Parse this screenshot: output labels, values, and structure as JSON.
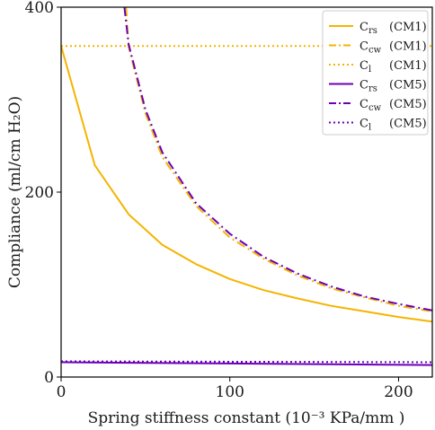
{
  "chart_data": {
    "type": "line",
    "xlabel": "Spring stiffness constant (10⁻³ KPa/mm )",
    "ylabel": "Compliance (ml/cm H₂O)",
    "xlim": [
      0,
      220
    ],
    "ylim": [
      0,
      400
    ],
    "xticks": [
      "0",
      "100",
      "200"
    ],
    "yticks": [
      "0",
      "200",
      "400"
    ],
    "legend_position": "top-right",
    "colors": {
      "cm1": "#F5B400",
      "cm5": "#6A00B8",
      "axis": "#000000"
    },
    "series": [
      {
        "name": "C_rs (CM1)",
        "label_main": "C",
        "label_sub": "rs",
        "label_tag": "(CM1)",
        "style": "solid",
        "color": "#F5B400",
        "x": [
          0,
          20,
          40,
          60,
          80,
          100,
          120,
          140,
          160,
          180,
          200,
          220
        ],
        "values": [
          358,
          229,
          176,
          143,
          122,
          106,
          94,
          85,
          77,
          71,
          65,
          60
        ]
      },
      {
        "name": "C_cw (CM1)",
        "label_main": "C",
        "label_sub": "cw",
        "label_tag": "(CM1)",
        "style": "dashdot",
        "color": "#F5B400",
        "x": [
          38.5,
          40,
          50,
          60,
          80,
          100,
          120,
          140,
          160,
          180,
          200,
          220
        ],
        "values": [
          400,
          357,
          285,
          238,
          185,
          151,
          128,
          110,
          96,
          86,
          77,
          71
        ]
      },
      {
        "name": "C_l (CM1)",
        "label_main": "C",
        "label_sub": "l",
        "label_tag": "(CM1)",
        "style": "dotted",
        "color": "#F5B400",
        "x": [
          0,
          220
        ],
        "values": [
          358,
          358
        ]
      },
      {
        "name": "C_rs (CM5)",
        "label_main": "C",
        "label_sub": "rs",
        "label_tag": "(CM5)",
        "style": "solid",
        "color": "#6A00B8",
        "x": [
          0,
          220
        ],
        "values": [
          16,
          13
        ]
      },
      {
        "name": "C_cw (CM5)",
        "label_main": "C",
        "label_sub": "cw",
        "label_tag": "(CM5)",
        "style": "dashdot",
        "color": "#6A00B8",
        "x": [
          37.5,
          40,
          50,
          60,
          80,
          100,
          120,
          140,
          160,
          180,
          200,
          220
        ],
        "values": [
          400,
          360,
          289,
          243,
          188,
          155,
          130,
          112,
          98,
          87,
          79,
          72
        ]
      },
      {
        "name": "C_l (CM5)",
        "label_main": "C",
        "label_sub": "l",
        "label_tag": "(CM5)",
        "style": "dotted",
        "color": "#6A00B8",
        "x": [
          0,
          220
        ],
        "values": [
          17,
          16
        ]
      }
    ]
  }
}
